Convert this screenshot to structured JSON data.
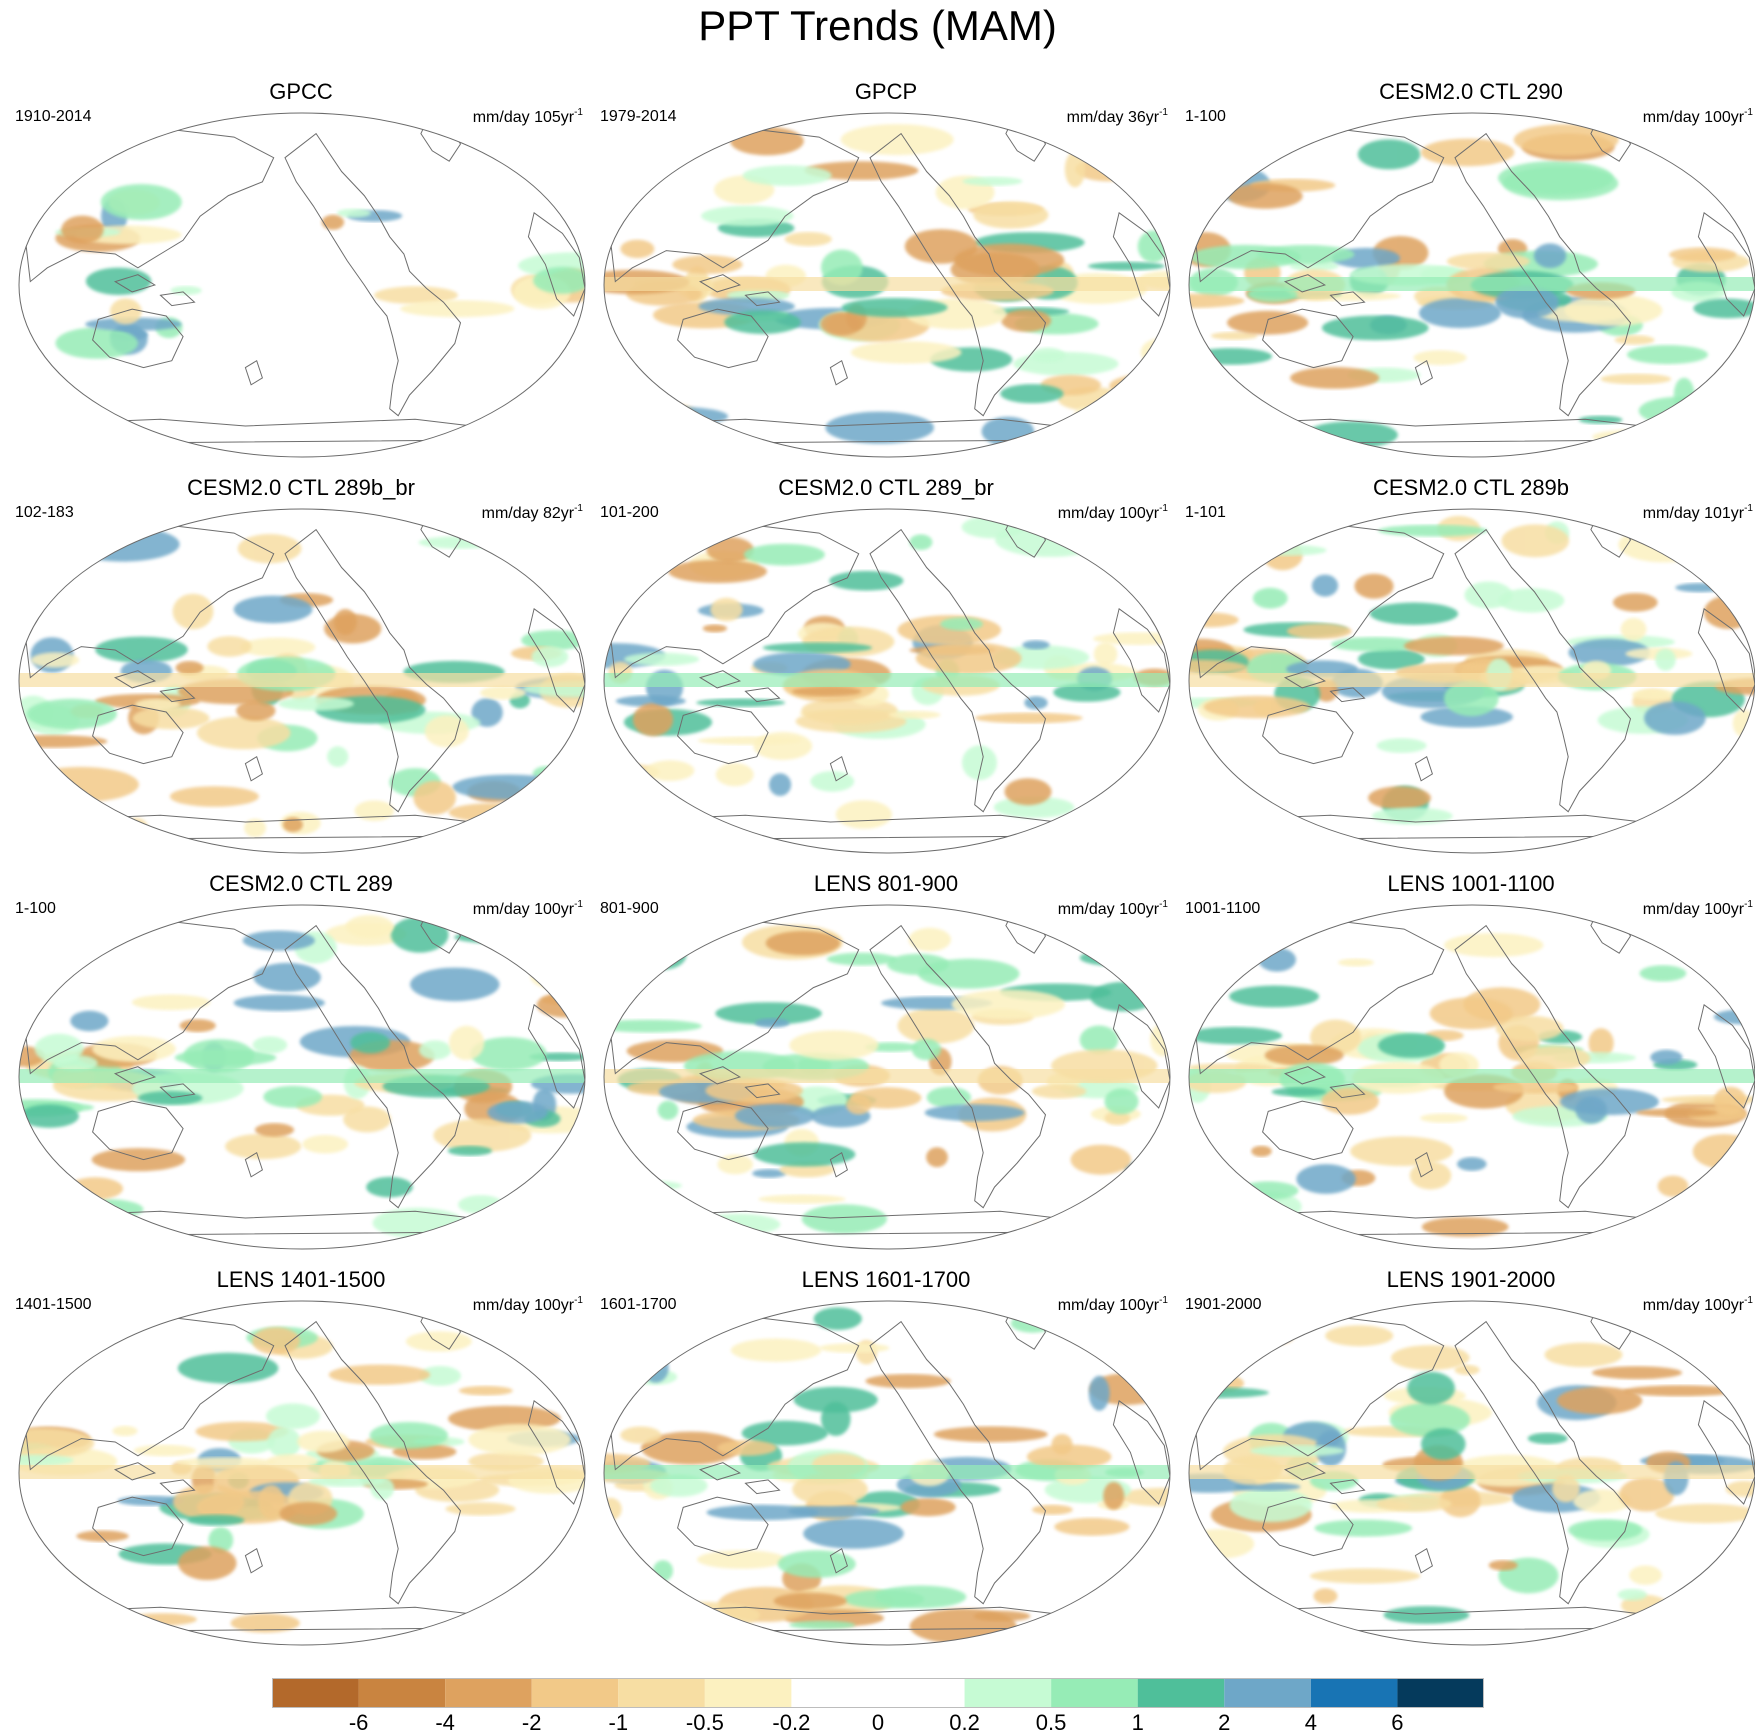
{
  "figure": {
    "title": "PPT Trends (MAM)"
  },
  "panels": [
    {
      "title": "GPCC",
      "period": "1910-2014",
      "units": "mm/day 105yr",
      "units_exp": "-1"
    },
    {
      "title": "GPCP",
      "period": "1979-2014",
      "units": "mm/day 36yr",
      "units_exp": "-1"
    },
    {
      "title": "CESM2.0 CTL 290",
      "period": "1-100",
      "units": "mm/day 100yr",
      "units_exp": "-1"
    },
    {
      "title": "CESM2.0 CTL 289b_br",
      "period": "102-183",
      "units": "mm/day 82yr",
      "units_exp": "-1"
    },
    {
      "title": "CESM2.0 CTL 289_br",
      "period": "101-200",
      "units": "mm/day 100yr",
      "units_exp": "-1"
    },
    {
      "title": "CESM2.0 CTL 289b",
      "period": "1-101",
      "units": "mm/day 101yr",
      "units_exp": "-1"
    },
    {
      "title": "CESM2.0 CTL 289",
      "period": "1-100",
      "units": "mm/day 100yr",
      "units_exp": "-1"
    },
    {
      "title": "LENS 801-900",
      "period": "801-900",
      "units": "mm/day 100yr",
      "units_exp": "-1"
    },
    {
      "title": "LENS 1001-1100",
      "period": "1001-1100",
      "units": "mm/day 100yr",
      "units_exp": "-1"
    },
    {
      "title": "LENS 1401-1500",
      "period": "1401-1500",
      "units": "mm/day 100yr",
      "units_exp": "-1"
    },
    {
      "title": "LENS 1601-1700",
      "period": "1601-1700",
      "units": "mm/day 100yr",
      "units_exp": "-1"
    },
    {
      "title": "LENS 1901-2000",
      "period": "1901-2000",
      "units": "mm/day 100yr",
      "units_exp": "-1"
    }
  ],
  "colorbar": {
    "labels": [
      "-6",
      "-4",
      "-2",
      "-1",
      "-0.5",
      "-0.2",
      "0",
      "0.2",
      "0.5",
      "1",
      "2",
      "4",
      "6"
    ],
    "colors": [
      "#b3692b",
      "#c98440",
      "#dea25f",
      "#f2c988",
      "#f7dea3",
      "#fcf1c0",
      "#ffffff",
      "#ffffff",
      "#c6fbd4",
      "#96ecb6",
      "#4fbf9a",
      "#6ea7c8",
      "#1874b4",
      "#053a5c"
    ]
  },
  "map_style": {
    "outline_color": "#6b6b6b",
    "coast_color": "#6e6e6e"
  }
}
